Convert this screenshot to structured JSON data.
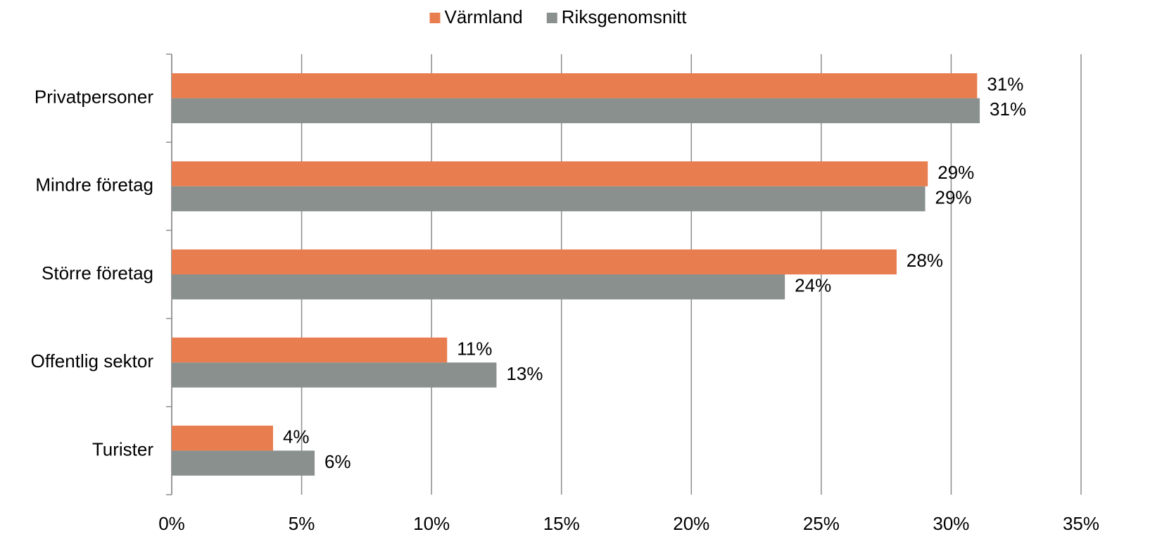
{
  "chart_data": {
    "type": "hbar",
    "categories": [
      "Privatpersoner",
      "Mindre företag",
      "Större företag",
      "Offentlig sektor",
      "Turister"
    ],
    "series": [
      {
        "name": "Värmland",
        "color": "#e87d50",
        "values": [
          31.0,
          29.1,
          27.9,
          10.6,
          3.9
        ],
        "value_labels": [
          "31%",
          "29%",
          "28%",
          "11%",
          "4%"
        ]
      },
      {
        "name": "Riksgenomsnitt",
        "color": "#8a908d",
        "values": [
          31.1,
          29.0,
          23.6,
          12.5,
          5.5
        ],
        "value_labels": [
          "31%",
          "29%",
          "24%",
          "13%",
          "6%"
        ]
      }
    ],
    "xlim": [
      0,
      35
    ],
    "xticks": [
      {
        "value": 0,
        "label": "0%"
      },
      {
        "value": 5,
        "label": "5%"
      },
      {
        "value": 10,
        "label": "10%"
      },
      {
        "value": 15,
        "label": "15%"
      },
      {
        "value": 20,
        "label": "20%"
      },
      {
        "value": 25,
        "label": "25%"
      },
      {
        "value": 30,
        "label": "30%"
      },
      {
        "value": 35,
        "label": "35%"
      }
    ],
    "grid": true,
    "legend": "top"
  }
}
